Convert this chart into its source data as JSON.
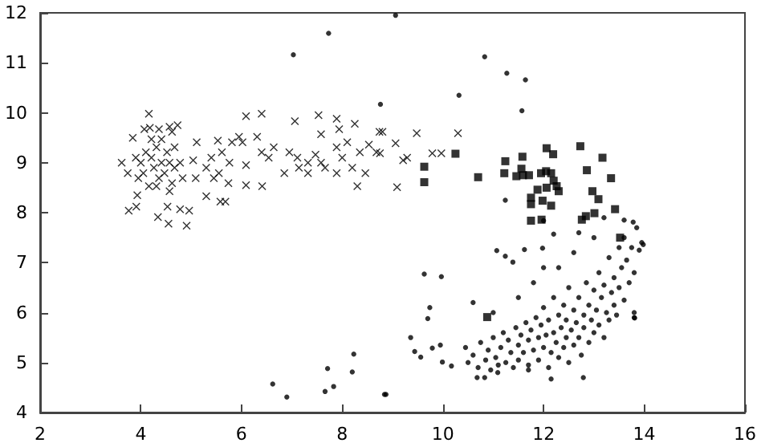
{
  "chart_data": {
    "type": "scatter",
    "xlim": [
      2,
      16
    ],
    "xticks": [
      2,
      4,
      6,
      8,
      10,
      12,
      14,
      16
    ],
    "ylim": [
      4,
      12
    ],
    "yticks": [
      4,
      5,
      6,
      7,
      8,
      9,
      10,
      11,
      12
    ],
    "grid": false,
    "series": [
      {
        "type": "scatter",
        "marker": "cross",
        "color": "#000000",
        "x": [
          3.62,
          3.74,
          3.76,
          3.91,
          3.93,
          3.84,
          4.16,
          4.07,
          4.18,
          4.36,
          4.57,
          4.73,
          4.62,
          3.95,
          4.0,
          4.1,
          4.21,
          4.26,
          4.31,
          4.41,
          4.47,
          4.36,
          4.52,
          4.57,
          4.67,
          4.62,
          4.31,
          4.16,
          4.05,
          3.9,
          4.21,
          4.41,
          4.67,
          4.78,
          4.83,
          4.57,
          4.34,
          4.53,
          4.78,
          4.96,
          4.91,
          4.55,
          5.04,
          5.11,
          5.09,
          5.3,
          5.3,
          5.45,
          5.55,
          5.4,
          5.53,
          5.61,
          5.58,
          5.68,
          5.74,
          5.76,
          5.81,
          5.95,
          6.02,
          6.09,
          6.09,
          6.09,
          6.31,
          6.4,
          6.41,
          6.4,
          6.54,
          6.64,
          6.85,
          6.95,
          7.06,
          7.11,
          7.14,
          7.32,
          7.32,
          7.47,
          7.53,
          7.58,
          7.58,
          7.66,
          7.89,
          7.89,
          7.94,
          7.89,
          8.0,
          8.1,
          8.2,
          8.25,
          8.3,
          8.35,
          8.46,
          8.53,
          8.68,
          8.74,
          8.8,
          8.75,
          9.06,
          9.21,
          9.29,
          9.09,
          9.48,
          9.79,
          9.97,
          10.3
        ],
        "values": [
          9.0,
          8.79,
          8.04,
          8.12,
          8.35,
          9.5,
          9.98,
          9.67,
          9.7,
          9.67,
          9.72,
          9.75,
          9.62,
          8.69,
          9.0,
          9.21,
          9.1,
          8.9,
          9.31,
          9.0,
          8.79,
          8.69,
          9.21,
          9.0,
          8.9,
          8.59,
          8.53,
          8.53,
          8.79,
          9.1,
          9.47,
          9.47,
          9.31,
          9.0,
          8.69,
          8.43,
          7.91,
          8.12,
          8.07,
          8.04,
          7.74,
          7.78,
          9.05,
          9.41,
          8.69,
          8.9,
          8.33,
          8.69,
          8.79,
          9.1,
          9.44,
          9.21,
          8.22,
          8.22,
          8.59,
          9.0,
          9.41,
          9.52,
          9.41,
          9.93,
          8.95,
          8.55,
          9.52,
          9.98,
          8.53,
          9.21,
          9.1,
          9.31,
          8.79,
          9.21,
          9.83,
          9.1,
          8.9,
          9.0,
          8.79,
          9.16,
          9.95,
          9.57,
          9.0,
          8.9,
          9.31,
          9.88,
          9.67,
          8.79,
          9.1,
          9.41,
          8.9,
          9.78,
          8.53,
          9.21,
          8.79,
          9.36,
          9.21,
          9.62,
          9.62,
          9.19,
          9.39,
          9.05,
          9.1,
          8.51,
          9.59,
          9.19,
          9.19,
          9.59
        ]
      },
      {
        "type": "scatter",
        "marker": "square",
        "color": "#000000",
        "x": [
          9.63,
          9.63,
          10.25,
          10.7,
          11.24,
          11.22,
          11.58,
          11.56,
          11.46,
          11.59,
          11.71,
          11.95,
          12.05,
          12.15,
          12.06,
          12.19,
          11.88,
          12.06,
          12.2,
          12.26,
          12.3,
          11.75,
          11.75,
          11.98,
          12.15,
          11.75,
          11.96,
          12.73,
          12.86,
          13.17,
          13.34,
          12.97,
          13.09,
          13.42,
          12.76,
          12.84,
          13.01,
          13.52,
          10.88
        ],
        "values": [
          8.92,
          8.61,
          9.18,
          8.71,
          9.03,
          8.79,
          9.12,
          8.88,
          8.73,
          8.75,
          8.75,
          8.79,
          8.83,
          8.79,
          9.29,
          9.17,
          8.46,
          8.5,
          8.64,
          8.53,
          8.43,
          8.3,
          8.17,
          8.24,
          8.14,
          7.84,
          7.86,
          9.33,
          8.85,
          9.1,
          8.69,
          8.43,
          8.27,
          8.07,
          7.86,
          7.93,
          7.99,
          7.5,
          5.91
        ]
      },
      {
        "type": "scatter",
        "marker": "circle",
        "color": "#000000",
        "x": [
          7.73,
          7.03,
          8.76,
          8.23,
          7.71,
          7.83,
          7.66,
          8.2,
          6.9,
          6.62,
          8.84,
          9.06,
          10.83,
          11.27,
          11.64,
          10.32,
          11.57,
          9.63,
          9.97,
          9.74,
          9.7,
          9.36,
          9.44,
          9.56,
          9.79,
          9.95,
          9.99,
          10.17,
          8.87,
          11.07,
          11.24,
          11.39,
          11.62,
          11.98,
          12.2,
          11.24,
          12.0,
          10.45,
          10.5,
          10.6,
          10.7,
          10.75,
          10.85,
          10.9,
          10.95,
          11.0,
          11.05,
          11.1,
          11.15,
          11.2,
          11.25,
          11.3,
          11.35,
          11.4,
          11.45,
          11.5,
          11.5,
          11.55,
          11.6,
          11.65,
          11.7,
          11.7,
          11.75,
          11.8,
          11.85,
          11.9,
          11.9,
          11.95,
          12.0,
          12.0,
          12.05,
          12.1,
          12.1,
          12.15,
          12.2,
          12.2,
          12.25,
          12.3,
          12.3,
          12.35,
          12.4,
          12.4,
          12.45,
          12.45,
          12.5,
          12.5,
          12.55,
          12.6,
          12.6,
          12.65,
          12.7,
          12.7,
          12.75,
          12.8,
          12.8,
          12.85,
          12.9,
          12.9,
          12.95,
          13.0,
          13.0,
          13.05,
          13.1,
          13.1,
          13.15,
          13.2,
          13.2,
          13.25,
          13.3,
          13.3,
          13.35,
          13.4,
          13.4,
          13.45,
          13.5,
          13.5,
          13.55,
          13.6,
          13.6,
          13.65,
          13.7,
          13.75,
          13.8,
          13.85,
          13.9,
          13.95,
          13.8,
          13.8,
          12.3,
          12.6,
          11.8,
          12.0,
          13.0,
          12.7,
          13.2,
          13.6,
          11.5,
          11.0,
          10.6,
          10.68,
          10.83,
          11.09,
          11.7,
          12.15,
          12.79,
          13.81,
          13.98,
          13.78
        ],
        "values": [
          11.59,
          11.16,
          10.17,
          5.17,
          4.88,
          4.52,
          4.42,
          4.81,
          4.31,
          4.57,
          4.36,
          11.95,
          11.12,
          10.79,
          10.66,
          10.35,
          10.04,
          6.77,
          6.72,
          6.1,
          5.88,
          5.5,
          5.22,
          5.11,
          5.29,
          5.35,
          5.01,
          4.93,
          4.36,
          7.24,
          7.13,
          7.01,
          7.26,
          7.29,
          7.57,
          8.25,
          7.84,
          5.3,
          5.0,
          5.15,
          4.9,
          5.4,
          5.05,
          5.25,
          4.85,
          5.5,
          5.1,
          4.95,
          5.3,
          5.6,
          5.0,
          5.45,
          5.2,
          4.9,
          5.7,
          5.35,
          5.05,
          5.55,
          5.2,
          5.8,
          4.95,
          5.45,
          5.65,
          5.25,
          5.9,
          5.05,
          5.5,
          5.75,
          5.3,
          6.1,
          5.55,
          4.9,
          5.85,
          5.2,
          5.6,
          6.3,
          5.4,
          5.95,
          5.1,
          5.7,
          5.3,
          6.15,
          5.5,
          5.85,
          6.5,
          5.0,
          5.65,
          5.35,
          6.05,
          5.8,
          5.5,
          6.3,
          5.15,
          5.95,
          5.7,
          6.6,
          5.4,
          6.15,
          5.85,
          6.45,
          5.6,
          6.05,
          5.75,
          6.8,
          6.3,
          5.5,
          6.55,
          6.0,
          7.1,
          5.85,
          6.4,
          6.7,
          6.15,
          5.95,
          7.3,
          6.5,
          6.9,
          6.25,
          7.5,
          7.05,
          6.6,
          7.3,
          6.8,
          7.7,
          7.25,
          7.4,
          6.0,
          5.9,
          6.9,
          7.2,
          6.6,
          6.9,
          7.5,
          7.6,
          7.9,
          7.85,
          6.3,
          6.0,
          6.2,
          4.7,
          4.7,
          4.8,
          4.85,
          4.67,
          4.7,
          5.89,
          7.36,
          7.81
        ]
      }
    ]
  }
}
